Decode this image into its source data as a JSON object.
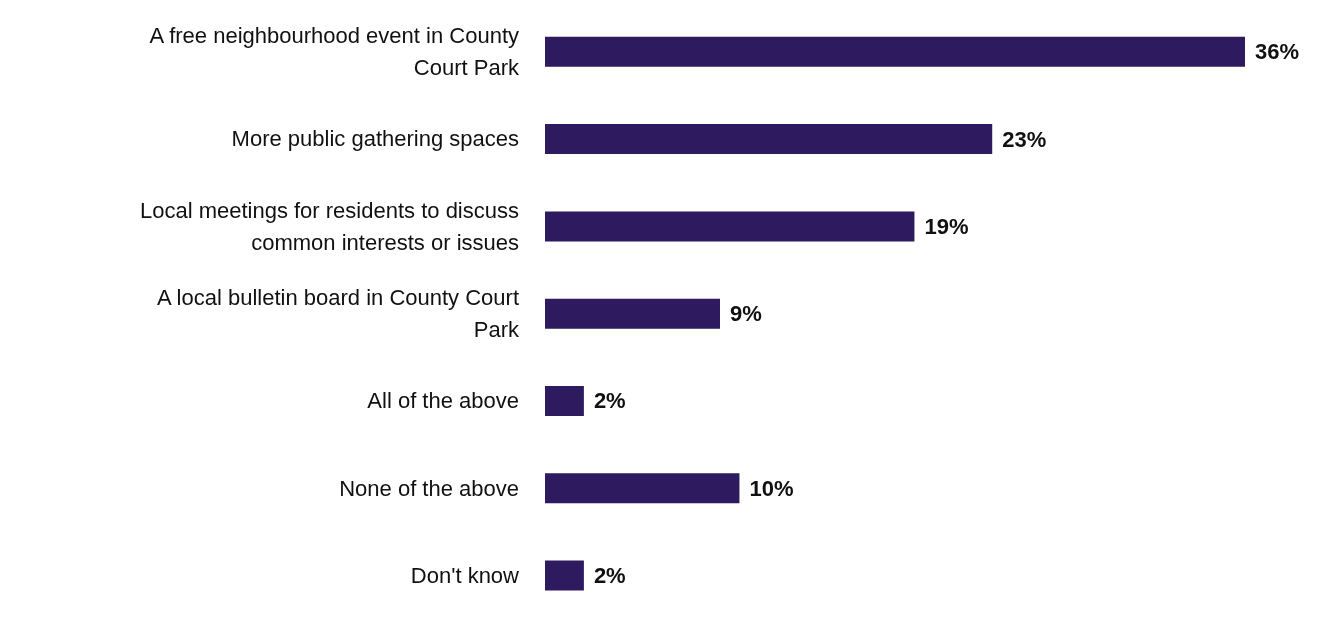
{
  "chart_data": {
    "type": "bar",
    "orientation": "horizontal",
    "categories": [
      "A free neighbourhood event in County Court Park",
      "More public gathering spaces",
      "Local meetings for residents to discuss common interests or issues",
      "A local bulletin board in County Court Park",
      "All of the above",
      "None of the above",
      "Don't know"
    ],
    "values": [
      36,
      23,
      19,
      9,
      2,
      10,
      2
    ],
    "value_labels": [
      "36%",
      "23%",
      "19%",
      "9%",
      "2%",
      "10%",
      "2%"
    ],
    "color": "#2e1a5e",
    "grid": false,
    "legend": false
  }
}
